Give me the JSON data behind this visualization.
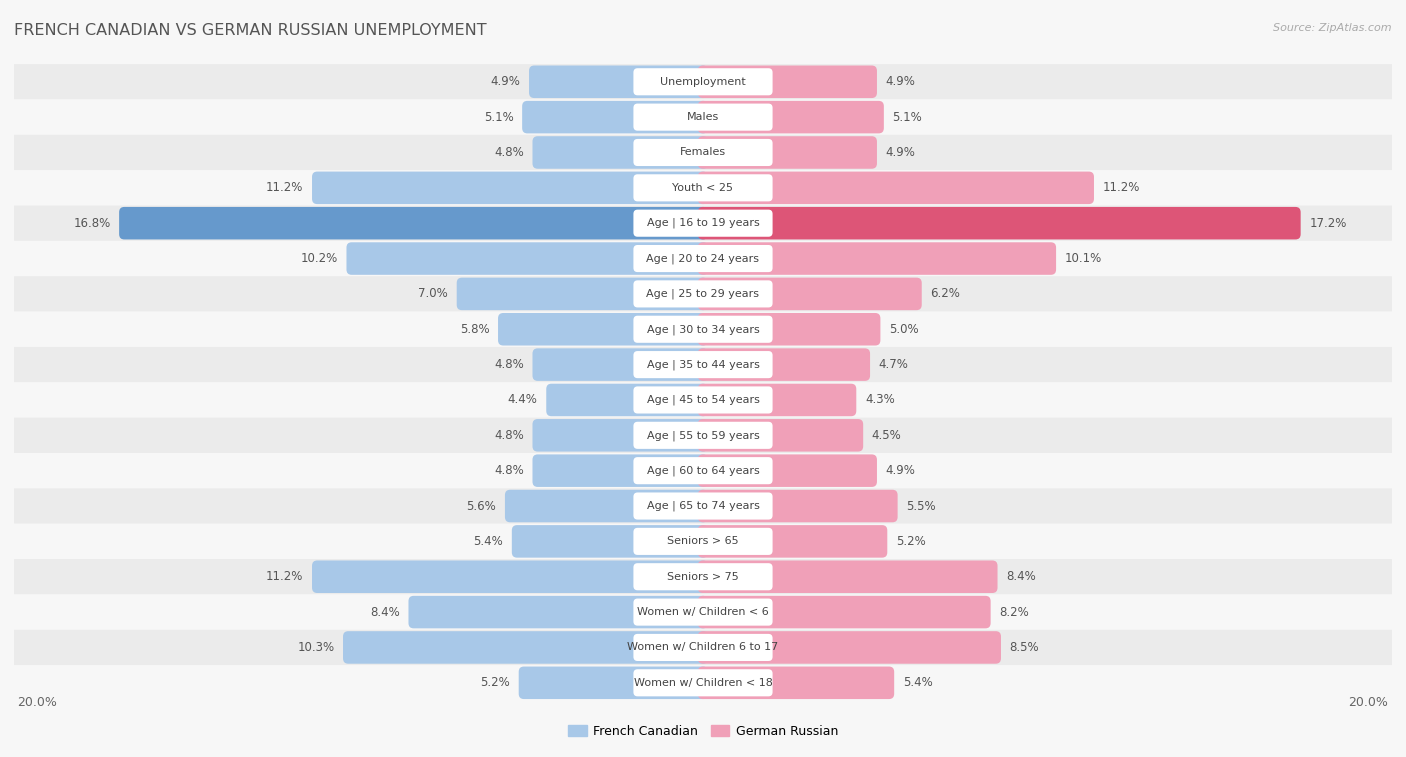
{
  "title": "FRENCH CANADIAN VS GERMAN RUSSIAN UNEMPLOYMENT",
  "source": "Source: ZipAtlas.com",
  "categories": [
    "Unemployment",
    "Males",
    "Females",
    "Youth < 25",
    "Age | 16 to 19 years",
    "Age | 20 to 24 years",
    "Age | 25 to 29 years",
    "Age | 30 to 34 years",
    "Age | 35 to 44 years",
    "Age | 45 to 54 years",
    "Age | 55 to 59 years",
    "Age | 60 to 64 years",
    "Age | 65 to 74 years",
    "Seniors > 65",
    "Seniors > 75",
    "Women w/ Children < 6",
    "Women w/ Children 6 to 17",
    "Women w/ Children < 18"
  ],
  "french_canadian": [
    4.9,
    5.1,
    4.8,
    11.2,
    16.8,
    10.2,
    7.0,
    5.8,
    4.8,
    4.4,
    4.8,
    4.8,
    5.6,
    5.4,
    11.2,
    8.4,
    10.3,
    5.2
  ],
  "german_russian": [
    4.9,
    5.1,
    4.9,
    11.2,
    17.2,
    10.1,
    6.2,
    5.0,
    4.7,
    4.3,
    4.5,
    4.9,
    5.5,
    5.2,
    8.4,
    8.2,
    8.5,
    5.4
  ],
  "french_color": "#a8c8e8",
  "german_color": "#f0a0b8",
  "highlight_french_color": "#6699cc",
  "highlight_german_color": "#dd5577",
  "highlight_idx": 4,
  "max_value": 20.0,
  "row_color_A": "#ebebeb",
  "row_color_B": "#f7f7f7",
  "bg_color": "#f7f7f7",
  "legend_french": "French Canadian",
  "legend_german": "German Russian"
}
